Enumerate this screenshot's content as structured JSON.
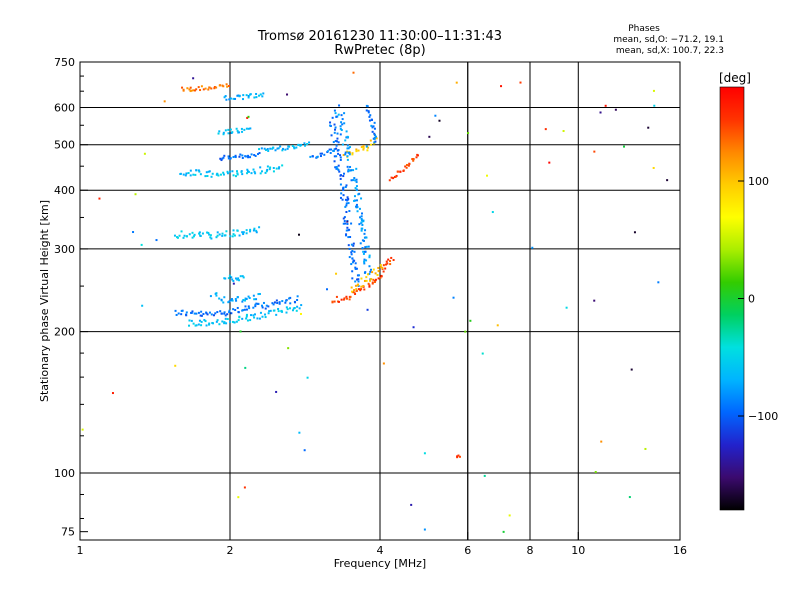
{
  "header": {
    "title_line1": "Tromsø 20161230 11:30:00–11:31:43",
    "title_line2": "RwPretec (8p)",
    "phase_title": "Phases",
    "phase_line1": "mean, sd,O: −71.2, 19.1",
    "phase_line2": "mean, sd,X: 100.7, 22.3"
  },
  "chart_data": {
    "type": "scatter",
    "xlabel": "Frequency [MHz]",
    "ylabel": "Stationary phase Virtual Height [km]",
    "xscale": "log",
    "yscale": "log",
    "xlim": [
      1,
      16
    ],
    "ylim": [
      72,
      750
    ],
    "x_ticks": [
      1,
      2,
      4,
      6,
      8,
      10,
      16
    ],
    "x_tick_labels": [
      "1",
      "2",
      "4",
      "6",
      "8",
      "10",
      "16"
    ],
    "x_minor_gridlines": [
      6,
      8
    ],
    "y_ticks": [
      75,
      100,
      200,
      300,
      400,
      500,
      600,
      750
    ],
    "y_tick_labels": [
      "75",
      "100",
      "200",
      "300",
      "400",
      "500",
      "600",
      "750"
    ],
    "y_gridlines": [
      100,
      200,
      300,
      400,
      500,
      600
    ],
    "grid": true,
    "colorbar": {
      "label": "[deg]",
      "min": -180,
      "max": 180,
      "ticks": [
        100,
        0,
        -100
      ],
      "tick_labels": [
        "100",
        "0",
        "−100"
      ],
      "colors": [
        "#000000",
        "#3b0a6e",
        "#2222cc",
        "#0066ff",
        "#00b4ff",
        "#00e0e0",
        "#00d060",
        "#33cc00",
        "#aaee00",
        "#ffff00",
        "#ffcc00",
        "#ff8800",
        "#ff3300",
        "#ff0000"
      ]
    },
    "traces": [
      {
        "x": [
          1.55,
          1.8,
          2.05,
          2.4,
          2.75
        ],
        "y": [
          220,
          217,
          222,
          228,
          235
        ],
        "phase": -95,
        "spread": 3
      },
      {
        "x": [
          1.65,
          2.0,
          2.4,
          2.8
        ],
        "y": [
          208,
          210,
          218,
          227
        ],
        "phase": -60,
        "spread": 3
      },
      {
        "x": [
          1.85,
          2.0,
          2.3
        ],
        "y": [
          240,
          232,
          238
        ],
        "phase": -70,
        "spread": 3
      },
      {
        "x": [
          1.95,
          2.05,
          2.15
        ],
        "y": [
          262,
          258,
          262
        ],
        "phase": -65,
        "spread": 2
      },
      {
        "x": [
          1.55,
          1.85,
          2.1,
          2.3
        ],
        "y": [
          322,
          320,
          324,
          330
        ],
        "phase": -60,
        "spread": 3
      },
      {
        "x": [
          1.6,
          1.9,
          2.2,
          2.55
        ],
        "y": [
          436,
          432,
          438,
          448
        ],
        "phase": -60,
        "spread": 3
      },
      {
        "x": [
          1.9,
          2.05,
          2.3
        ],
        "y": [
          468,
          470,
          478
        ],
        "phase": -95,
        "spread": 2
      },
      {
        "x": [
          2.3,
          2.6,
          2.9
        ],
        "y": [
          488,
          492,
          505
        ],
        "phase": -65,
        "spread": 2
      },
      {
        "x": [
          2.9,
          3.1,
          3.3
        ],
        "y": [
          470,
          480,
          488
        ],
        "phase": -90,
        "spread": 2
      },
      {
        "x": [
          3.4,
          3.6,
          3.8,
          3.95
        ],
        "y": [
          474,
          483,
          497,
          520
        ],
        "phase": 95,
        "spread": 3
      },
      {
        "x": [
          3.3,
          3.4,
          3.55,
          3.7,
          3.8
        ],
        "y": [
          600,
          520,
          420,
          330,
          260
        ],
        "phase": -80,
        "spread": 5
      },
      {
        "x": [
          3.2,
          3.3,
          3.4,
          3.5,
          3.6
        ],
        "y": [
          560,
          460,
          380,
          300,
          250
        ],
        "phase": -95,
        "spread": 5
      },
      {
        "x": [
          3.75,
          3.85,
          3.95
        ],
        "y": [
          600,
          560,
          500
        ],
        "phase": -90,
        "spread": 3
      },
      {
        "x": [
          3.2,
          3.5,
          3.8,
          4.05,
          4.25
        ],
        "y": [
          232,
          238,
          250,
          268,
          290
        ],
        "phase": 150,
        "spread": 3
      },
      {
        "x": [
          3.5,
          3.8,
          4.1
        ],
        "y": [
          245,
          260,
          278
        ],
        "phase": 100,
        "spread": 3
      },
      {
        "x": [
          1.9,
          2.05,
          2.2
        ],
        "y": [
          530,
          535,
          540
        ],
        "phase": -65,
        "spread": 2
      },
      {
        "x": [
          1.95,
          2.15,
          2.35
        ],
        "y": [
          628,
          632,
          640
        ],
        "phase": -70,
        "spread": 2
      },
      {
        "x": [
          1.6,
          1.8,
          2.0
        ],
        "y": [
          655,
          662,
          668
        ],
        "phase": 130,
        "spread": 2
      },
      {
        "x": [
          5.7,
          5.8
        ],
        "y": [
          108,
          109
        ],
        "phase": 150,
        "spread": 1
      },
      {
        "x": [
          4.2,
          4.5,
          4.8
        ],
        "y": [
          420,
          450,
          480
        ],
        "phase": 150,
        "spread": 2
      }
    ]
  }
}
